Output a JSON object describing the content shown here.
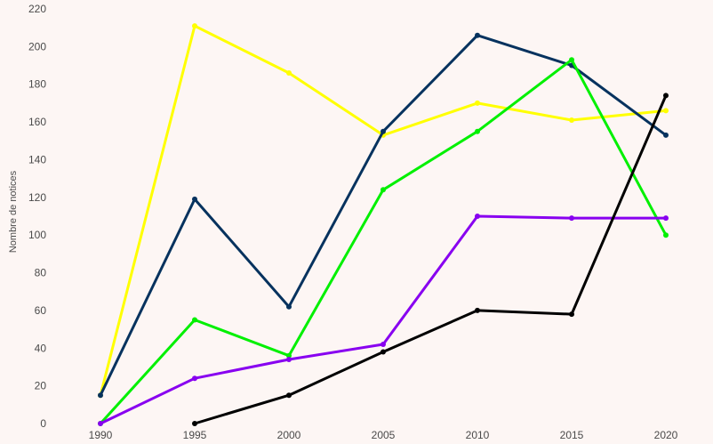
{
  "chart_data": {
    "type": "line",
    "title": "",
    "xlabel": "",
    "ylabel": "Nombre de notices",
    "x": [
      "1990",
      "1995",
      "2000",
      "2005",
      "2010",
      "2015",
      "2020"
    ],
    "yticks": [
      "0",
      "20",
      "40",
      "60",
      "80",
      "100",
      "120",
      "140",
      "160",
      "180",
      "200",
      "220"
    ],
    "ylim": [
      0,
      220
    ],
    "grid": false,
    "legend": "none",
    "series": [
      {
        "color": "#ffff00",
        "values": [
          15,
          211,
          186,
          153,
          170,
          161,
          166
        ]
      },
      {
        "color": "#06325e",
        "values": [
          15,
          119,
          62,
          155,
          206,
          190,
          153
        ]
      },
      {
        "color": "#00f000",
        "values": [
          0,
          55,
          36,
          124,
          155,
          193,
          100
        ]
      },
      {
        "color": "#8800f0",
        "values": [
          0,
          24,
          34,
          42,
          110,
          109,
          109
        ]
      },
      {
        "color": "#000000",
        "values": [
          null,
          0,
          15,
          38,
          60,
          58,
          174
        ]
      }
    ]
  }
}
